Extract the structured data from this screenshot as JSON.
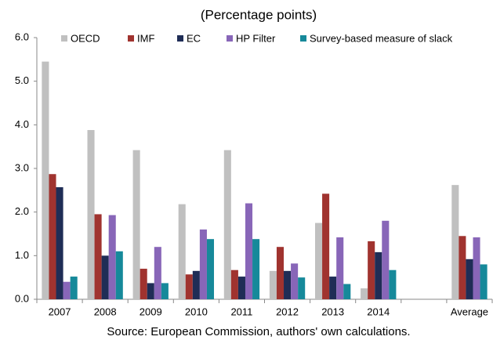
{
  "chart_data": {
    "type": "bar",
    "subtitle": "(Percentage points)",
    "note": "Source: European Commission, authors' own calculations.",
    "categories": [
      "2007",
      "2008",
      "2009",
      "2010",
      "2011",
      "2012",
      "2013",
      "2014",
      null,
      "Average"
    ],
    "series": [
      {
        "name": "OECD",
        "color": "#c0c0c0",
        "values": [
          5.45,
          3.88,
          3.42,
          2.18,
          3.42,
          0.65,
          1.75,
          0.25,
          null,
          2.62
        ]
      },
      {
        "name": "IMF",
        "color": "#a0332f",
        "values": [
          2.87,
          1.95,
          0.7,
          0.57,
          0.67,
          1.2,
          2.42,
          1.33,
          null,
          1.45
        ]
      },
      {
        "name": "EC",
        "color": "#1f2d56",
        "values": [
          2.57,
          1.0,
          0.37,
          0.65,
          0.52,
          0.65,
          0.52,
          1.08,
          null,
          0.92
        ]
      },
      {
        "name": "HP Filter",
        "color": "#8866b8",
        "values": [
          0.4,
          1.93,
          1.2,
          1.6,
          2.2,
          0.82,
          1.42,
          1.8,
          null,
          1.42
        ]
      },
      {
        "name": "Survey-based measure of slack",
        "color": "#16899a",
        "values": [
          0.52,
          1.1,
          0.37,
          1.38,
          1.38,
          0.5,
          0.35,
          0.67,
          null,
          0.8
        ]
      }
    ],
    "ylim": [
      0,
      6
    ],
    "yticks": [
      {
        "value": 0,
        "label": "0.0"
      },
      {
        "value": 1,
        "label": "1.0"
      },
      {
        "value": 2,
        "label": "2.0"
      },
      {
        "value": 3,
        "label": "3.0"
      },
      {
        "value": 4,
        "label": "4.0"
      },
      {
        "value": 5,
        "label": "5.0"
      },
      {
        "value": 6,
        "label": "6.0"
      }
    ],
    "legend": "top"
  }
}
